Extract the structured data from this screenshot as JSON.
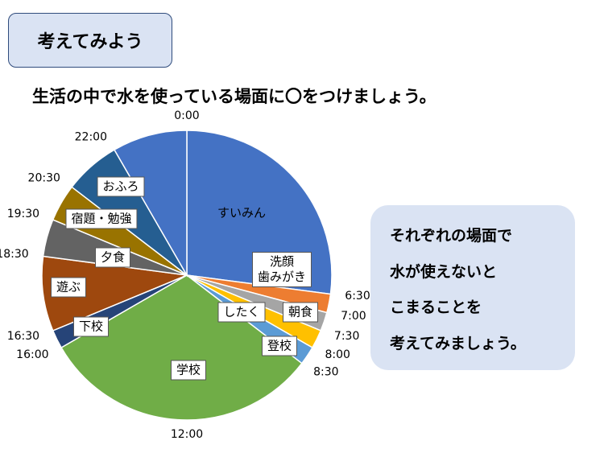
{
  "header": {
    "title": "考えてみよう"
  },
  "instruction": "生活の中で水を使っている場面に〇をつけましょう。",
  "note": [
    "それぞれの場面で",
    "水が使えないと",
    "こまることを",
    "考えてみましょう。"
  ],
  "chart_data": {
    "type": "pie",
    "categories": [
      "すいみん",
      "洗顔\n歯みがき",
      "朝食",
      "したく",
      "登校",
      "学校",
      "下校",
      "遊ぶ",
      "夕食",
      "宿題・勉強",
      "おふろ",
      null
    ],
    "values": [
      6.5,
      0.5,
      0.5,
      0.5,
      0.5,
      7.5,
      0.5,
      2,
      1,
      1,
      1.5,
      2
    ],
    "colors": [
      "#4472c4",
      "#ed7d31",
      "#a5a5a5",
      "#ffc000",
      "#5b9bd5",
      "#70ad47",
      "#264478",
      "#9e480e",
      "#636363",
      "#997300",
      "#255e91",
      "#4472c4"
    ],
    "clock_ticks": [
      {
        "value": 0,
        "label": "0:00"
      },
      {
        "value": 6.5,
        "label": "6:30"
      },
      {
        "value": 7,
        "label": "7:00"
      },
      {
        "value": 7.5,
        "label": "7:30"
      },
      {
        "value": 8,
        "label": "8:00"
      },
      {
        "value": 8.5,
        "label": "8:30"
      },
      {
        "value": 12,
        "label": "12:00"
      },
      {
        "value": 16,
        "label": "16:00"
      },
      {
        "value": 16.5,
        "label": "16:30"
      },
      {
        "value": 18.5,
        "label": "18:30"
      },
      {
        "value": 19.5,
        "label": "19:30"
      },
      {
        "value": 20.5,
        "label": "20:30"
      },
      {
        "value": 22,
        "label": "22:00"
      }
    ]
  }
}
